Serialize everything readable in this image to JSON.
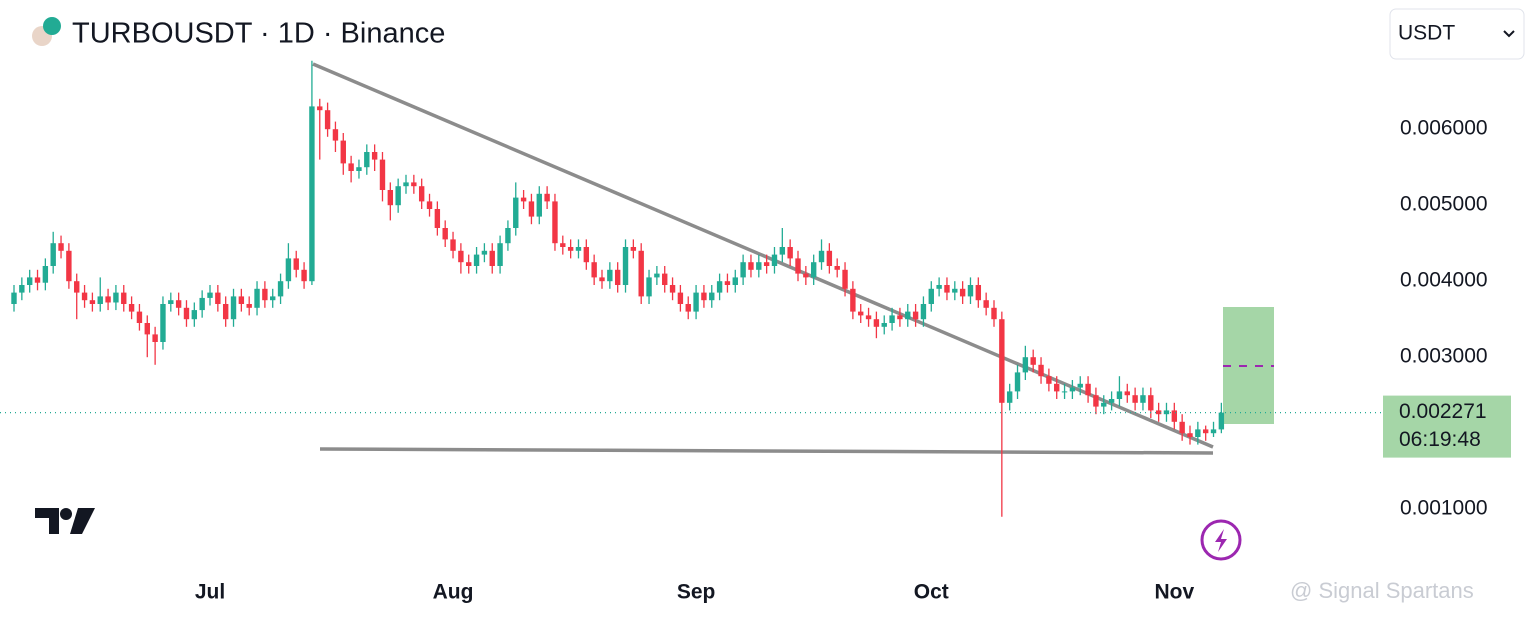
{
  "chart_data": {
    "type": "candlestick",
    "title": "TURBOUSDT · 1D · Binance",
    "currency": "USDT",
    "countdown": "06:19:48",
    "watermark": "@ Signal Spartans",
    "up_color": "#22ab94",
    "down_color": "#f23645",
    "categories": [
      null,
      null,
      null,
      null,
      null,
      null,
      null,
      null,
      null,
      null,
      null,
      null,
      null,
      null,
      null,
      null,
      null,
      null,
      null,
      null,
      null,
      null,
      null,
      null,
      null,
      "Jul",
      null,
      null,
      null,
      null,
      null,
      null,
      null,
      null,
      null,
      null,
      null,
      null,
      null,
      null,
      null,
      null,
      null,
      null,
      null,
      null,
      null,
      null,
      null,
      null,
      null,
      null,
      null,
      null,
      null,
      null,
      "Aug",
      null,
      null,
      null,
      null,
      null,
      null,
      null,
      null,
      null,
      null,
      null,
      null,
      null,
      null,
      null,
      null,
      null,
      null,
      null,
      null,
      null,
      null,
      null,
      null,
      null,
      null,
      null,
      null,
      null,
      null,
      "Sep",
      null,
      null,
      null,
      null,
      null,
      null,
      null,
      null,
      null,
      null,
      null,
      null,
      null,
      null,
      null,
      null,
      null,
      null,
      null,
      null,
      null,
      null,
      null,
      null,
      null,
      null,
      null,
      null,
      null,
      "Oct",
      null,
      null,
      null,
      null,
      null,
      null,
      null,
      null,
      null,
      null,
      null,
      null,
      null,
      null,
      null,
      null,
      null,
      null,
      null,
      null,
      null,
      null,
      null,
      null,
      null,
      null,
      null,
      null,
      null,
      null,
      "Nov",
      null,
      null,
      null,
      null,
      null,
      null
    ],
    "open": [
      0.0037,
      0.00385,
      0.00395,
      0.00405,
      0.00398,
      0.0042,
      0.0045,
      0.0044,
      0.004,
      0.00385,
      0.00375,
      0.0037,
      0.0038,
      0.00372,
      0.00385,
      0.0037,
      0.0036,
      0.00345,
      0.0033,
      0.0032,
      0.0037,
      0.00375,
      0.00365,
      0.0035,
      0.00362,
      0.00378,
      0.00385,
      0.0037,
      0.0035,
      0.0038,
      0.0037,
      0.00365,
      0.0039,
      0.00375,
      0.0038,
      0.004,
      0.0043,
      0.00415,
      0.004,
      0.0063,
      0.00625,
      0.006,
      0.00585,
      0.00555,
      0.00545,
      0.0055,
      0.0057,
      0.0056,
      0.0052,
      0.005,
      0.00525,
      0.0053,
      0.00525,
      0.00505,
      0.00495,
      0.0047,
      0.00455,
      0.0044,
      0.00425,
      0.0042,
      0.00435,
      0.0044,
      0.0042,
      0.0045,
      0.0047,
      0.0051,
      0.00505,
      0.00485,
      0.00515,
      0.00505,
      0.0045,
      0.00445,
      0.0044,
      0.00445,
      0.00425,
      0.00405,
      0.004,
      0.00415,
      0.00395,
      0.00445,
      0.0044,
      0.0038,
      0.00405,
      0.0041,
      0.00395,
      0.00385,
      0.0037,
      0.0036,
      0.00385,
      0.00375,
      0.00385,
      0.004,
      0.00395,
      0.00405,
      0.00425,
      0.00415,
      0.00425,
      0.0042,
      0.00435,
      0.00445,
      0.0043,
      0.0041,
      0.00405,
      0.00425,
      0.0044,
      0.0042,
      0.00415,
      0.0039,
      0.0036,
      0.00355,
      0.0035,
      0.0034,
      0.00345,
      0.00355,
      0.0035,
      0.0036,
      0.0035,
      0.0037,
      0.0039,
      0.00395,
      0.00385,
      0.0039,
      0.0038,
      0.00395,
      0.00375,
      0.00365,
      0.0035,
      0.0024,
      0.00255,
      0.0028,
      0.003,
      0.0029,
      0.00275,
      0.00265,
      0.00255,
      0.00255,
      0.0026,
      0.00265,
      0.0025,
      0.00235,
      0.0024,
      0.00245,
      0.00255,
      0.0025,
      0.0024,
      0.0025,
      0.0023,
      0.00225,
      0.0023,
      0.00215,
      0.002,
      0.00195,
      0.00205,
      0.002,
      0.00205
    ],
    "high": [
      0.00395,
      0.00405,
      0.00415,
      0.00415,
      0.0043,
      0.00465,
      0.0046,
      0.0045,
      0.0041,
      0.00395,
      0.00385,
      0.00405,
      0.0039,
      0.00395,
      0.00395,
      0.0038,
      0.0037,
      0.00355,
      0.0034,
      0.0038,
      0.00385,
      0.00385,
      0.00375,
      0.00372,
      0.00388,
      0.00395,
      0.00395,
      0.0038,
      0.0039,
      0.0039,
      0.0038,
      0.004,
      0.004,
      0.0039,
      0.0041,
      0.0045,
      0.0044,
      0.00425,
      0.0069,
      0.0064,
      0.00635,
      0.0061,
      0.00595,
      0.00565,
      0.0056,
      0.0058,
      0.0058,
      0.0057,
      0.0053,
      0.00535,
      0.0054,
      0.0054,
      0.00535,
      0.00515,
      0.00505,
      0.0048,
      0.00465,
      0.0045,
      0.00435,
      0.00445,
      0.0045,
      0.0045,
      0.0046,
      0.0048,
      0.0053,
      0.0052,
      0.00515,
      0.00525,
      0.00525,
      0.00515,
      0.0046,
      0.00455,
      0.00455,
      0.00455,
      0.00435,
      0.00415,
      0.00425,
      0.00425,
      0.00455,
      0.00455,
      0.0045,
      0.00415,
      0.0042,
      0.0042,
      0.00405,
      0.00395,
      0.0038,
      0.00395,
      0.00395,
      0.00395,
      0.0041,
      0.0041,
      0.00415,
      0.00435,
      0.00435,
      0.00435,
      0.00435,
      0.00445,
      0.0047,
      0.00455,
      0.0044,
      0.0042,
      0.00435,
      0.00455,
      0.0045,
      0.0043,
      0.00425,
      0.004,
      0.0037,
      0.00365,
      0.0036,
      0.00355,
      0.00365,
      0.00365,
      0.0037,
      0.0037,
      0.0038,
      0.004,
      0.00405,
      0.00405,
      0.004,
      0.004,
      0.00405,
      0.00405,
      0.00385,
      0.00375,
      0.0036,
      0.00265,
      0.0029,
      0.00315,
      0.0031,
      0.003,
      0.00285,
      0.00275,
      0.00265,
      0.0027,
      0.00275,
      0.00275,
      0.0026,
      0.0025,
      0.00255,
      0.00275,
      0.00265,
      0.0026,
      0.0026,
      0.0026,
      0.0024,
      0.0024,
      0.0024,
      0.00225,
      0.0021,
      0.00215,
      0.0021,
      0.00215,
      0.0024
    ],
    "low": [
      0.0036,
      0.00375,
      0.00385,
      0.00388,
      0.00388,
      0.0041,
      0.0043,
      0.0039,
      0.0035,
      0.00365,
      0.0036,
      0.0036,
      0.00362,
      0.00362,
      0.0036,
      0.0035,
      0.00335,
      0.003,
      0.0029,
      0.0031,
      0.0036,
      0.00355,
      0.0034,
      0.0034,
      0.00352,
      0.00368,
      0.0036,
      0.0034,
      0.0034,
      0.0036,
      0.00355,
      0.00355,
      0.00365,
      0.00365,
      0.0037,
      0.0039,
      0.00405,
      0.0039,
      0.00395,
      0.0056,
      0.0059,
      0.0057,
      0.0054,
      0.0053,
      0.00535,
      0.0054,
      0.00545,
      0.00505,
      0.0048,
      0.0049,
      0.00515,
      0.00515,
      0.00495,
      0.00485,
      0.0046,
      0.00445,
      0.0043,
      0.0041,
      0.0041,
      0.0041,
      0.00425,
      0.0041,
      0.0041,
      0.0044,
      0.0046,
      0.00495,
      0.00475,
      0.00475,
      0.00495,
      0.0044,
      0.00435,
      0.0043,
      0.0043,
      0.00415,
      0.00395,
      0.0039,
      0.0039,
      0.00385,
      0.00385,
      0.0043,
      0.0037,
      0.0037,
      0.00395,
      0.00385,
      0.00375,
      0.0036,
      0.0035,
      0.0035,
      0.00365,
      0.00365,
      0.00375,
      0.00385,
      0.00385,
      0.00395,
      0.00405,
      0.00405,
      0.0041,
      0.0041,
      0.00425,
      0.0042,
      0.004,
      0.00395,
      0.00395,
      0.00415,
      0.0041,
      0.00405,
      0.0038,
      0.0035,
      0.00345,
      0.0034,
      0.00325,
      0.0033,
      0.00335,
      0.0034,
      0.0034,
      0.0034,
      0.0034,
      0.0036,
      0.0038,
      0.00375,
      0.00375,
      0.0037,
      0.0037,
      0.00365,
      0.00355,
      0.0034,
      0.0009,
      0.0023,
      0.00245,
      0.0027,
      0.0028,
      0.00265,
      0.00255,
      0.00245,
      0.00245,
      0.00245,
      0.0025,
      0.0024,
      0.00225,
      0.00225,
      0.0023,
      0.00235,
      0.0024,
      0.0023,
      0.0023,
      0.0022,
      0.00215,
      0.00215,
      0.00205,
      0.0019,
      0.00185,
      0.00185,
      0.0019,
      0.00195,
      0.002
    ],
    "close": [
      0.00385,
      0.00395,
      0.00405,
      0.00398,
      0.0042,
      0.0045,
      0.0044,
      0.004,
      0.00385,
      0.00375,
      0.0037,
      0.0038,
      0.00372,
      0.00385,
      0.0037,
      0.0036,
      0.00345,
      0.0033,
      0.0032,
      0.0037,
      0.00375,
      0.00365,
      0.0035,
      0.00362,
      0.00378,
      0.00385,
      0.0037,
      0.0035,
      0.0038,
      0.0037,
      0.00365,
      0.0039,
      0.00375,
      0.0038,
      0.004,
      0.0043,
      0.00415,
      0.004,
      0.0063,
      0.00625,
      0.006,
      0.00585,
      0.00555,
      0.00545,
      0.0055,
      0.0057,
      0.0056,
      0.0052,
      0.005,
      0.00525,
      0.0053,
      0.00525,
      0.00505,
      0.00495,
      0.0047,
      0.00455,
      0.0044,
      0.00425,
      0.0042,
      0.00435,
      0.0044,
      0.0042,
      0.0045,
      0.0047,
      0.0051,
      0.00505,
      0.00485,
      0.00515,
      0.00505,
      0.0045,
      0.00445,
      0.0044,
      0.00445,
      0.00425,
      0.00405,
      0.004,
      0.00415,
      0.00395,
      0.00445,
      0.0044,
      0.0038,
      0.00405,
      0.0041,
      0.00395,
      0.00385,
      0.0037,
      0.0036,
      0.00385,
      0.00375,
      0.00385,
      0.004,
      0.00395,
      0.00405,
      0.00425,
      0.00415,
      0.00425,
      0.0042,
      0.00435,
      0.00445,
      0.0043,
      0.0041,
      0.00405,
      0.00425,
      0.0044,
      0.0042,
      0.00415,
      0.0039,
      0.0036,
      0.00355,
      0.0035,
      0.0034,
      0.00345,
      0.00355,
      0.0035,
      0.0036,
      0.0035,
      0.0037,
      0.0039,
      0.00395,
      0.00385,
      0.0039,
      0.0038,
      0.00395,
      0.00375,
      0.00365,
      0.0035,
      0.0024,
      0.00255,
      0.0028,
      0.003,
      0.0029,
      0.00275,
      0.00265,
      0.00255,
      0.00255,
      0.0026,
      0.00265,
      0.0025,
      0.00235,
      0.0024,
      0.00245,
      0.00255,
      0.0025,
      0.0024,
      0.0025,
      0.0023,
      0.00225,
      0.0023,
      0.00215,
      0.002,
      0.00195,
      0.00205,
      0.002,
      0.00205,
      0.002271
    ],
    "ylim": [
      0.0002,
      0.0077
    ],
    "yticks": [
      {
        "value": 0.001,
        "label": "0.001000"
      },
      {
        "value": 0.003,
        "label": "0.003000"
      },
      {
        "value": 0.004,
        "label": "0.004000"
      },
      {
        "value": 0.005,
        "label": "0.005000"
      },
      {
        "value": 0.006,
        "label": "0.006000"
      }
    ],
    "grid": false
  }
}
